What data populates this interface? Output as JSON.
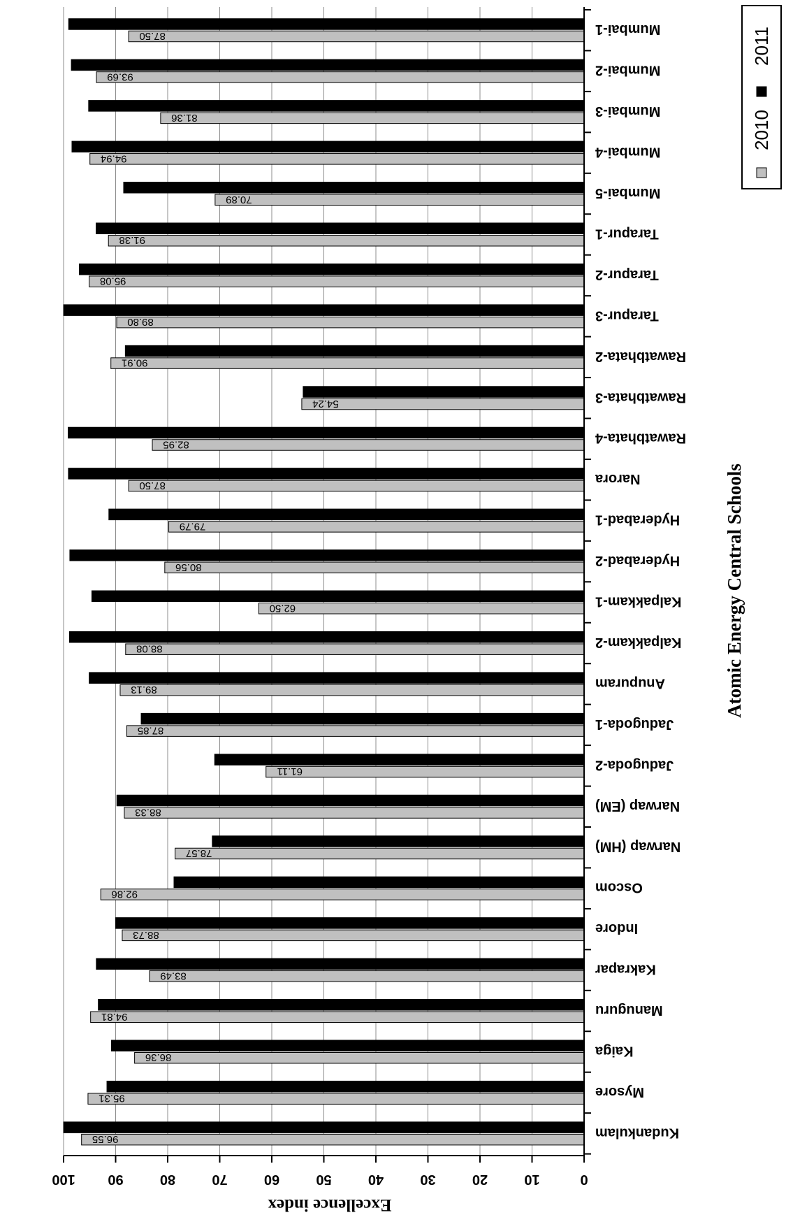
{
  "chart_data": {
    "type": "bar",
    "orientation": "horizontal",
    "xlabel": "Atomic Energy Central Schools",
    "ylabel": "Excellence index",
    "ylim": [
      0,
      100
    ],
    "yticks": [
      0,
      10,
      20,
      30,
      40,
      50,
      60,
      70,
      80,
      90,
      100
    ],
    "grid": true,
    "legend_position": "top-right",
    "categories": [
      "Mumbai-1",
      "Mumbai-2",
      "Mumbai-3",
      "Mumbai-4",
      "Mumbai-5",
      "Tarapur-1",
      "Tarapur-2",
      "Tarapur-3",
      "Rawatbhata-2",
      "Rawatbhata-3",
      "Rawatbhata-4",
      "Narora",
      "Hyderabad-1",
      "Hyderabad-2",
      "Kalpakkam-1",
      "Kalpakkam-2",
      "Anupuram",
      "Jadugoda-1",
      "Jadugoda-2",
      "Narwap (EM)",
      "Narwap (HM)",
      "Oscom",
      "Indore",
      "Kakrapar",
      "Manuguru",
      "Kaiga",
      "Mysore",
      "Kudankulam"
    ],
    "series": [
      {
        "name": "2010",
        "color": "#c0c0c0",
        "values": [
          87.5,
          93.69,
          81.36,
          94.94,
          70.89,
          91.38,
          95.08,
          89.8,
          90.91,
          54.24,
          82.95,
          87.5,
          79.79,
          80.56,
          62.5,
          88.08,
          89.13,
          87.85,
          61.11,
          88.33,
          78.57,
          92.86,
          88.73,
          83.49,
          94.81,
          86.36,
          95.31,
          96.55
        ],
        "labels": [
          "87.50",
          "93.69",
          "81.36",
          "94.94",
          "70.89",
          "91.38",
          "95.08",
          "89.80",
          "90.91",
          "54.24",
          "82.95",
          "87.50",
          "79.79",
          "80.56",
          "62.50",
          "88.08",
          "89.13",
          "87.85",
          "61.11",
          "88.33",
          "78.57",
          "92.86",
          "88.73",
          "83.49",
          "94.81",
          "86.36",
          "95.31",
          "96.55"
        ]
      },
      {
        "name": "2011",
        "color": "#000000",
        "values": [
          99.02,
          98.51,
          95.19,
          98.39,
          88.46,
          93.75,
          96.97,
          100,
          88.14,
          53.97,
          99.12,
          99.07,
          91.3,
          98.8,
          94.57,
          98.86,
          95.08,
          85.09,
          70.97,
          89.76,
          71.43,
          78.79,
          90.0,
          93.71,
          93.33,
          90.8,
          91.67,
          100.0
        ],
        "labels": [
          "99.02",
          "98.51",
          "95.19",
          "98.39",
          "88.46",
          "93.75",
          "96.97",
          "100",
          "88.14",
          "53.97",
          "99.12",
          "99.07",
          "91.30",
          "98.80",
          "94.57",
          "98.86",
          "95.08",
          "85.09",
          "70.97",
          "89.76",
          "71.43",
          "78.79",
          "90.00",
          "93.71",
          "93.33",
          "90.80",
          "91.67",
          "100.00"
        ]
      }
    ]
  }
}
